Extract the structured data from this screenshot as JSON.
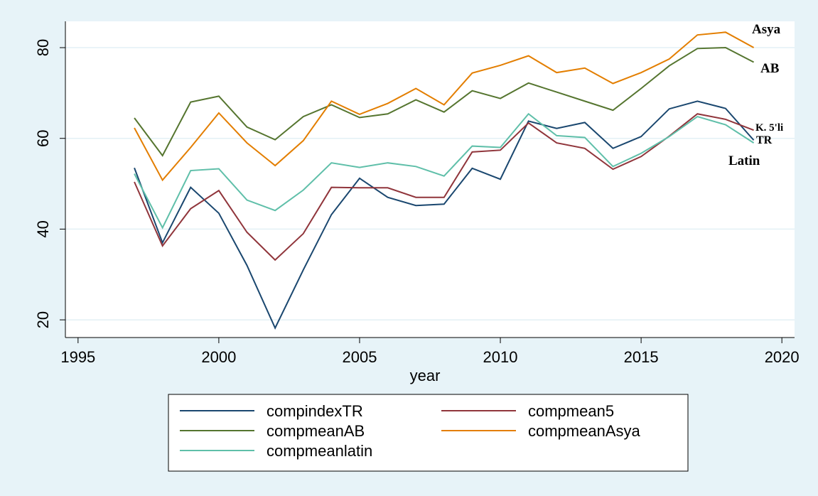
{
  "chart_data": {
    "type": "line",
    "x_label": "year",
    "x": [
      1997,
      1998,
      1999,
      2000,
      2001,
      2002,
      2003,
      2004,
      2005,
      2006,
      2007,
      2008,
      2009,
      2010,
      2011,
      2012,
      2013,
      2014,
      2015,
      2016,
      2017,
      2018,
      2019
    ],
    "series": [
      {
        "name": "compindexTR",
        "color": "#1a476f",
        "values": [
          53.5,
          37,
          49.2,
          43.5,
          32,
          18.2,
          31,
          43.2,
          51.2,
          47,
          45.2,
          45.5,
          53.4,
          51,
          63.8,
          62.2,
          63.5,
          57.8,
          60.4,
          66.5,
          68.2,
          66.6,
          59.6
        ]
      },
      {
        "name": "compmean5",
        "color": "#90353b",
        "values": [
          50.4,
          36.3,
          44.5,
          48.5,
          39.3,
          33.2,
          39,
          49.2,
          49.1,
          49.1,
          47,
          47,
          57,
          57.4,
          63.4,
          59,
          57.8,
          53.2,
          56,
          60.5,
          65.4,
          64.2,
          61.8
        ]
      },
      {
        "name": "compmeanAB",
        "color": "#55752f",
        "values": [
          64.5,
          56.2,
          68,
          69.3,
          62.5,
          59.7,
          64.8,
          67.4,
          64.6,
          65.4,
          68.5,
          65.8,
          70.5,
          68.8,
          72.2,
          70.2,
          68.2,
          66.2,
          71,
          76,
          79.8,
          80,
          76.8
        ]
      },
      {
        "name": "compmeanAsya",
        "color": "#e37e00",
        "values": [
          62.3,
          50.8,
          58,
          65.6,
          59,
          54,
          59.5,
          68.2,
          65.3,
          67.7,
          71,
          67.4,
          74.4,
          76.1,
          78.2,
          74.5,
          75.5,
          72.1,
          74.5,
          77.5,
          82.8,
          83.4,
          80
        ]
      },
      {
        "name": "compmeanlatin",
        "color": "#5fbfa9",
        "values": [
          52.2,
          40.3,
          52.9,
          53.3,
          46.4,
          44.1,
          48.6,
          54.6,
          53.6,
          54.6,
          53.8,
          51.7,
          58.3,
          58,
          65.4,
          60.6,
          60.2,
          53.8,
          56.7,
          60.4,
          64.8,
          63,
          59
        ]
      }
    ],
    "annotations": [
      "Asya",
      "AB",
      "K. 5'li",
      "TR",
      "Latin"
    ],
    "xlim": [
      1994.55,
      2020.45
    ],
    "xticks": [
      1995,
      2000,
      2005,
      2010,
      2015,
      2020
    ],
    "ylim": [
      16.1,
      85.8
    ],
    "yticks": [
      20,
      40,
      60,
      80
    ],
    "grid": true
  }
}
